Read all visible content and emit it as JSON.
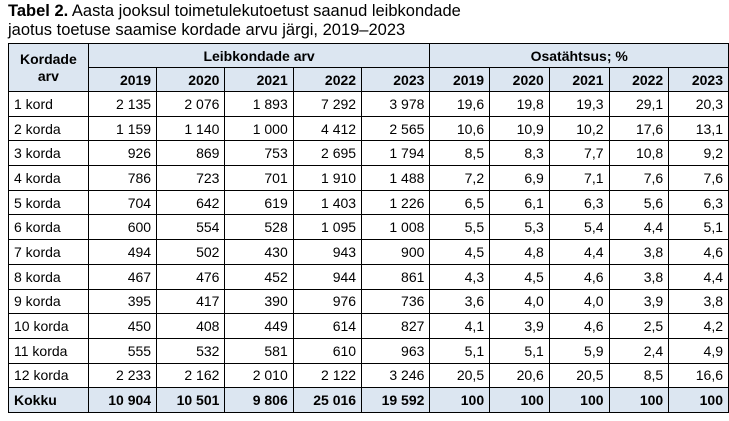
{
  "title": {
    "label": "Tabel 2.",
    "text": "Aasta jooksul toimetulekutoetust saanud leibkondade jaotus toetuse saamise kordade arvu järgi, 2019–2023"
  },
  "table": {
    "row_header": "Kordade arv",
    "groups": [
      "Leibkondade arv",
      "Osatähtsus; %"
    ],
    "years": [
      "2019",
      "2020",
      "2021",
      "2022",
      "2023"
    ],
    "rows": [
      [
        "1 kord",
        "2 135",
        "2 076",
        "1 893",
        "7 292",
        "3 978",
        "19,6",
        "19,8",
        "19,3",
        "29,1",
        "20,3"
      ],
      [
        "2 korda",
        "1 159",
        "1 140",
        "1 000",
        "4 412",
        "2 565",
        "10,6",
        "10,9",
        "10,2",
        "17,6",
        "13,1"
      ],
      [
        "3 korda",
        "926",
        "869",
        "753",
        "2 695",
        "1 794",
        "8,5",
        "8,3",
        "7,7",
        "10,8",
        "9,2"
      ],
      [
        "4 korda",
        "786",
        "723",
        "701",
        "1 910",
        "1 488",
        "7,2",
        "6,9",
        "7,1",
        "7,6",
        "7,6"
      ],
      [
        "5 korda",
        "704",
        "642",
        "619",
        "1 403",
        "1 226",
        "6,5",
        "6,1",
        "6,3",
        "5,6",
        "6,3"
      ],
      [
        "6 korda",
        "600",
        "554",
        "528",
        "1 095",
        "1 008",
        "5,5",
        "5,3",
        "5,4",
        "4,4",
        "5,1"
      ],
      [
        "7 korda",
        "494",
        "502",
        "430",
        "943",
        "900",
        "4,5",
        "4,8",
        "4,4",
        "3,8",
        "4,6"
      ],
      [
        "8 korda",
        "467",
        "476",
        "452",
        "944",
        "861",
        "4,3",
        "4,5",
        "4,6",
        "3,8",
        "4,4"
      ],
      [
        "9 korda",
        "395",
        "417",
        "390",
        "976",
        "736",
        "3,6",
        "4,0",
        "4,0",
        "3,9",
        "3,8"
      ],
      [
        "10 korda",
        "450",
        "408",
        "449",
        "614",
        "827",
        "4,1",
        "3,9",
        "4,6",
        "2,5",
        "4,2"
      ],
      [
        "11 korda",
        "555",
        "532",
        "581",
        "610",
        "963",
        "5,1",
        "5,1",
        "5,9",
        "2,4",
        "4,9"
      ],
      [
        "12 korda",
        "2 233",
        "2 162",
        "2 010",
        "2 122",
        "3 246",
        "20,5",
        "20,6",
        "20,5",
        "8,5",
        "16,6"
      ]
    ],
    "total": [
      "Kokku",
      "10 904",
      "10 501",
      "9 806",
      "25 016",
      "19 592",
      "100",
      "100",
      "100",
      "100",
      "100"
    ]
  }
}
